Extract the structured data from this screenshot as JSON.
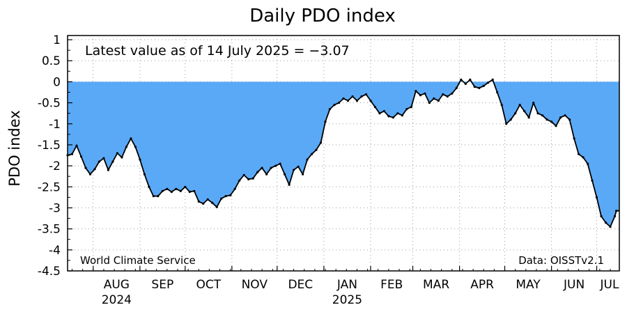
{
  "chart_data": {
    "type": "area",
    "title": "Daily PDO index",
    "ylabel": "PDO index",
    "xlabel": "",
    "ylim": [
      -4.5,
      1.1
    ],
    "yticks": [
      1,
      0.5,
      0,
      -0.5,
      -1,
      -1.5,
      -2,
      -2.5,
      -3,
      -3.5,
      -4,
      -4.5
    ],
    "ytick_labels": [
      "1",
      "0.5",
      "0",
      "-0.5",
      "-1",
      "-1.5",
      "-2",
      "-2.5",
      "-3",
      "-3.5",
      "-4",
      "-4.5"
    ],
    "xlim": [
      "2024-07-15",
      "2025-07-16"
    ],
    "months": [
      {
        "label": "AUG",
        "start": "2024-08-01",
        "year_label": "2024"
      },
      {
        "label": "SEP",
        "start": "2024-09-01",
        "year_label": ""
      },
      {
        "label": "OCT",
        "start": "2024-10-01",
        "year_label": ""
      },
      {
        "label": "NOV",
        "start": "2024-11-01",
        "year_label": ""
      },
      {
        "label": "DEC",
        "start": "2024-12-01",
        "year_label": ""
      },
      {
        "label": "JAN",
        "start": "2025-01-01",
        "year_label": "2025"
      },
      {
        "label": "FEB",
        "start": "2025-02-01",
        "year_label": ""
      },
      {
        "label": "MAR",
        "start": "2025-03-01",
        "year_label": ""
      },
      {
        "label": "APR",
        "start": "2025-04-01",
        "year_label": ""
      },
      {
        "label": "MAY",
        "start": "2025-05-01",
        "year_label": ""
      },
      {
        "label": "JUN",
        "start": "2025-06-01",
        "year_label": ""
      },
      {
        "label": "JUL",
        "start": "2025-07-01",
        "year_label": ""
      }
    ],
    "grid": true,
    "fill_color": "#5aa9f7",
    "line_color": "#000000",
    "annotation": "Latest value as of 14 July 2025 = −3.07",
    "credit_left": "World Climate Service",
    "credit_right": "Data: OISSTv2.1",
    "series": [
      {
        "x": [
          "2024-07-15",
          "2024-07-18",
          "2024-07-21",
          "2024-07-24",
          "2024-07-27",
          "2024-07-30",
          "2024-08-02",
          "2024-08-05",
          "2024-08-08",
          "2024-08-11",
          "2024-08-14",
          "2024-08-17",
          "2024-08-20",
          "2024-08-23",
          "2024-08-26",
          "2024-08-29",
          "2024-09-01",
          "2024-09-04",
          "2024-09-07",
          "2024-09-10",
          "2024-09-13",
          "2024-09-16",
          "2024-09-19",
          "2024-09-22",
          "2024-09-25",
          "2024-09-28",
          "2024-10-01",
          "2024-10-04",
          "2024-10-07",
          "2024-10-10",
          "2024-10-13",
          "2024-10-16",
          "2024-10-19",
          "2024-10-22",
          "2024-10-25",
          "2024-10-28",
          "2024-10-31",
          "2024-11-03",
          "2024-11-06",
          "2024-11-09",
          "2024-11-12",
          "2024-11-15",
          "2024-11-18",
          "2024-11-21",
          "2024-11-24",
          "2024-11-27",
          "2024-11-30",
          "2024-12-03",
          "2024-12-06",
          "2024-12-09",
          "2024-12-12",
          "2024-12-15",
          "2024-12-18",
          "2024-12-21",
          "2024-12-24",
          "2024-12-27",
          "2024-12-30",
          "2025-01-02",
          "2025-01-05",
          "2025-01-08",
          "2025-01-11",
          "2025-01-14",
          "2025-01-17",
          "2025-01-20",
          "2025-01-23",
          "2025-01-26",
          "2025-01-29",
          "2025-02-01",
          "2025-02-04",
          "2025-02-07",
          "2025-02-10",
          "2025-02-13",
          "2025-02-16",
          "2025-02-19",
          "2025-02-22",
          "2025-02-25",
          "2025-02-28",
          "2025-03-03",
          "2025-03-06",
          "2025-03-09",
          "2025-03-12",
          "2025-03-15",
          "2025-03-18",
          "2025-03-21",
          "2025-03-24",
          "2025-03-27",
          "2025-03-30",
          "2025-04-02",
          "2025-04-05",
          "2025-04-08",
          "2025-04-11",
          "2025-04-14",
          "2025-04-17",
          "2025-04-20",
          "2025-04-23",
          "2025-04-26",
          "2025-04-29",
          "2025-05-02",
          "2025-05-05",
          "2025-05-08",
          "2025-05-11",
          "2025-05-14",
          "2025-05-17",
          "2025-05-20",
          "2025-05-23",
          "2025-05-26",
          "2025-05-29",
          "2025-06-01",
          "2025-06-04",
          "2025-06-07",
          "2025-06-10",
          "2025-06-13",
          "2025-06-16",
          "2025-06-19",
          "2025-06-22",
          "2025-06-25",
          "2025-06-28",
          "2025-07-01",
          "2025-07-04",
          "2025-07-07",
          "2025-07-10",
          "2025-07-13",
          "2025-07-14"
        ],
        "y": [
          -1.75,
          -1.72,
          -1.52,
          -1.78,
          -2.05,
          -2.2,
          -2.08,
          -1.9,
          -1.82,
          -2.1,
          -1.9,
          -1.7,
          -1.8,
          -1.55,
          -1.35,
          -1.55,
          -1.85,
          -2.2,
          -2.5,
          -2.72,
          -2.72,
          -2.6,
          -2.55,
          -2.62,
          -2.55,
          -2.6,
          -2.5,
          -2.62,
          -2.6,
          -2.85,
          -2.9,
          -2.8,
          -2.88,
          -2.98,
          -2.78,
          -2.72,
          -2.7,
          -2.55,
          -2.35,
          -2.22,
          -2.32,
          -2.3,
          -2.15,
          -2.05,
          -2.2,
          -2.05,
          -2.0,
          -1.95,
          -2.2,
          -2.45,
          -2.1,
          -2.02,
          -2.2,
          -1.85,
          -1.72,
          -1.62,
          -1.45,
          -0.95,
          -0.65,
          -0.55,
          -0.5,
          -0.4,
          -0.45,
          -0.35,
          -0.45,
          -0.35,
          -0.3,
          -0.45,
          -0.6,
          -0.75,
          -0.7,
          -0.82,
          -0.85,
          -0.75,
          -0.8,
          -0.65,
          -0.6,
          -0.22,
          -0.32,
          -0.28,
          -0.5,
          -0.4,
          -0.45,
          -0.3,
          -0.35,
          -0.28,
          -0.15,
          0.05,
          -0.05,
          0.05,
          -0.12,
          -0.15,
          -0.1,
          -0.02,
          0.05,
          -0.25,
          -0.55,
          -1.0,
          -0.9,
          -0.75,
          -0.55,
          -0.7,
          -0.85,
          -0.5,
          -0.75,
          -0.8,
          -0.9,
          -0.95,
          -1.05,
          -0.85,
          -0.8,
          -0.9,
          -1.35,
          -1.72,
          -1.8,
          -1.95,
          -2.35,
          -2.75,
          -3.2,
          -3.35,
          -3.45,
          -3.2,
          -3.07
        ]
      }
    ]
  }
}
